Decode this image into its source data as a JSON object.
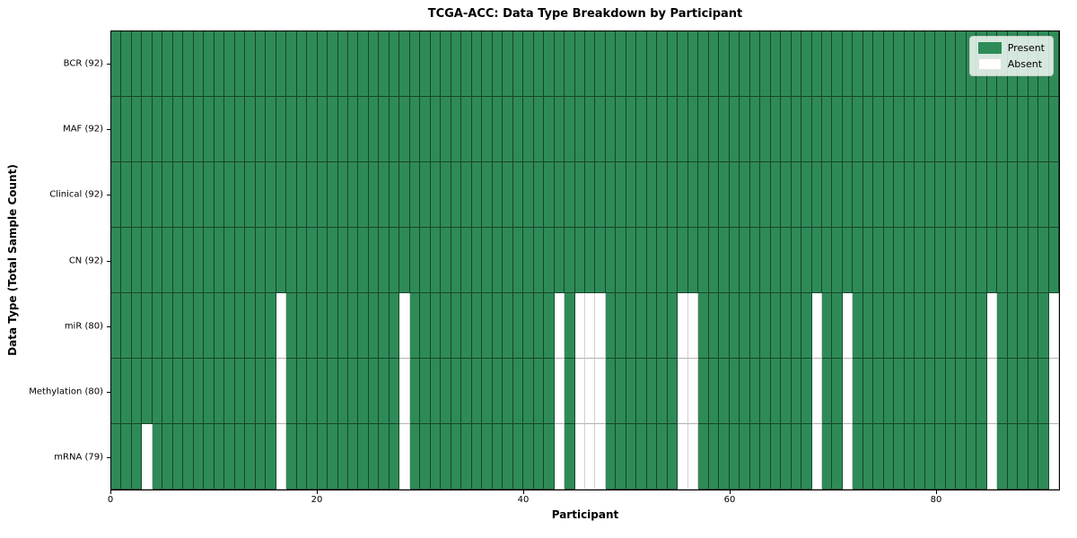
{
  "title": "TCGA-ACC: Data Type Breakdown by Participant",
  "x_axis_label": "Participant",
  "y_axis_label": "Data Type (Total Sample Count)",
  "legend": {
    "present_label": "Present",
    "absent_label": "Absent",
    "position": "upper right"
  },
  "colors": {
    "present": "#2E8B57",
    "absent": "#FFFFFF",
    "grid_line": "rgba(0,0,0,0.5)",
    "spine": "#000000"
  },
  "chart_data": {
    "type": "heatmap",
    "title": "TCGA-ACC: Data Type Breakdown by Participant",
    "xlabel": "Participant",
    "ylabel": "Data Type (Total Sample Count)",
    "x_range": [
      0,
      92
    ],
    "x_ticks": [
      0,
      20,
      40,
      60,
      80
    ],
    "n_participants": 92,
    "value_encoding": {
      "present": 1,
      "absent": 0
    },
    "legend_entries": [
      "Present",
      "Absent"
    ],
    "legend_position": "upper right",
    "grid": true,
    "rows": [
      {
        "label": "BCR (92)",
        "data_type": "BCR",
        "total_sample_count": 92,
        "n_present": 92,
        "absent_participants": []
      },
      {
        "label": "MAF (92)",
        "data_type": "MAF",
        "total_sample_count": 92,
        "n_present": 92,
        "absent_participants": []
      },
      {
        "label": "Clinical (92)",
        "data_type": "Clinical",
        "total_sample_count": 92,
        "n_present": 92,
        "absent_participants": []
      },
      {
        "label": "CN (92)",
        "data_type": "CN",
        "total_sample_count": 92,
        "n_present": 92,
        "absent_participants": []
      },
      {
        "label": "miR (80)",
        "data_type": "miR",
        "total_sample_count": 80,
        "n_present": 80,
        "absent_participants": [
          16,
          28,
          43,
          45,
          46,
          47,
          55,
          56,
          68,
          71,
          85,
          91
        ]
      },
      {
        "label": "Methylation (80)",
        "data_type": "Methylation",
        "total_sample_count": 80,
        "n_present": 80,
        "absent_participants": [
          16,
          28,
          43,
          45,
          46,
          47,
          55,
          56,
          68,
          71,
          85,
          91
        ]
      },
      {
        "label": "mRNA (79)",
        "data_type": "mRNA",
        "total_sample_count": 79,
        "n_present": 79,
        "absent_participants": [
          3,
          16,
          28,
          43,
          45,
          46,
          47,
          55,
          56,
          68,
          71,
          85,
          91
        ]
      }
    ]
  }
}
